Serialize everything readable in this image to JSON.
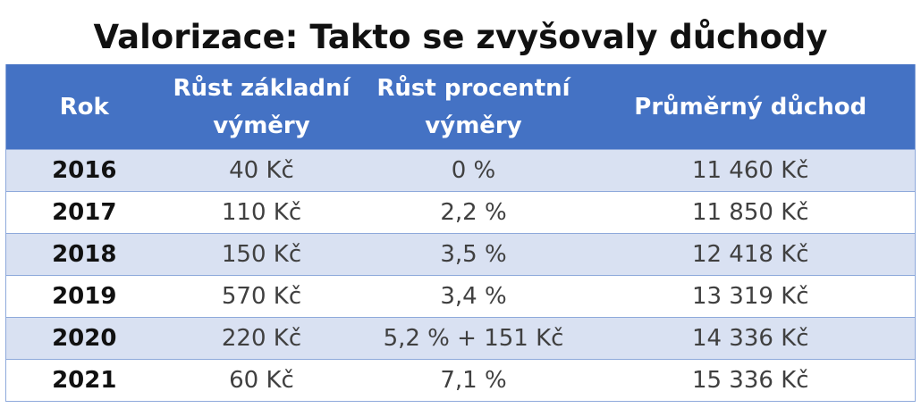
{
  "header": {
    "title": "Valorizace: Takto se zvyšovaly důchody"
  },
  "table": {
    "columns": [
      "Rok",
      "Růst základní výměry",
      "Růst procentní výměry",
      "Průměrný důchod"
    ],
    "rows": [
      [
        "2016",
        "40 Kč",
        "0 %",
        "11 460 Kč"
      ],
      [
        "2017",
        "110 Kč",
        "2,2 %",
        "11 850 Kč"
      ],
      [
        "2018",
        "150 Kč",
        "3,5 %",
        "12 418 Kč"
      ],
      [
        "2019",
        "570 Kč",
        "3,4 %",
        "13 319 Kč"
      ],
      [
        "2020",
        "220 Kč",
        "5,2 % + 151 Kč",
        "14 336 Kč"
      ],
      [
        "2021",
        "60 Kč",
        "7,1 %",
        "15 336 Kč"
      ]
    ]
  }
}
